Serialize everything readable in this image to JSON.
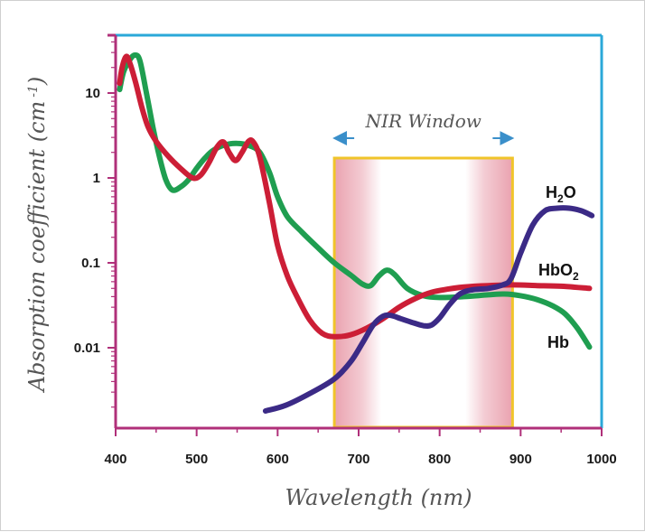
{
  "chart_data": {
    "type": "line",
    "xlabel": "Wavelength (nm)",
    "ylabel": "Absorption coefficient (cm⁻¹)",
    "ylabel_parts": {
      "main": "Absorption coefficient (cm",
      "sup": "-1",
      "close": ")"
    },
    "x_ticks": [
      400,
      500,
      600,
      700,
      800,
      900,
      1000
    ],
    "x_tick_labels": [
      "400",
      "500",
      "600",
      "700",
      "800",
      "900",
      "1000"
    ],
    "xlim": [
      400,
      1000
    ],
    "y_scale": "log",
    "y_ticks": [
      10,
      1,
      0.1,
      0.01
    ],
    "y_tick_labels": [
      "10",
      "1",
      "0.1",
      "0.01"
    ],
    "ylim": [
      0.0008,
      40
    ],
    "window": {
      "label": "NIR Window",
      "x_start": 670,
      "x_end": 890
    },
    "series": [
      {
        "name": "Hb",
        "color": "#1f9e50",
        "points": [
          [
            405,
            11
          ],
          [
            410,
            18
          ],
          [
            418,
            25
          ],
          [
            424,
            28
          ],
          [
            430,
            24
          ],
          [
            438,
            10
          ],
          [
            446,
            4
          ],
          [
            454,
            1.8
          ],
          [
            462,
            0.95
          ],
          [
            470,
            0.72
          ],
          [
            480,
            0.78
          ],
          [
            490,
            0.95
          ],
          [
            500,
            1.3
          ],
          [
            510,
            1.7
          ],
          [
            520,
            2.1
          ],
          [
            535,
            2.45
          ],
          [
            550,
            2.55
          ],
          [
            565,
            2.4
          ],
          [
            578,
            2.0
          ],
          [
            590,
            1.15
          ],
          [
            600,
            0.6
          ],
          [
            612,
            0.35
          ],
          [
            630,
            0.23
          ],
          [
            650,
            0.15
          ],
          [
            670,
            0.1
          ],
          [
            690,
            0.072
          ],
          [
            705,
            0.056
          ],
          [
            715,
            0.054
          ],
          [
            725,
            0.07
          ],
          [
            735,
            0.082
          ],
          [
            745,
            0.072
          ],
          [
            760,
            0.05
          ],
          [
            780,
            0.041
          ],
          [
            800,
            0.039
          ],
          [
            830,
            0.04
          ],
          [
            860,
            0.042
          ],
          [
            880,
            0.043
          ],
          [
            900,
            0.041
          ],
          [
            920,
            0.037
          ],
          [
            940,
            0.031
          ],
          [
            955,
            0.025
          ],
          [
            970,
            0.017
          ],
          [
            985,
            0.0102
          ]
        ]
      },
      {
        "name": "HbO2",
        "color": "#cc1e36",
        "points": [
          [
            405,
            13
          ],
          [
            408,
            20
          ],
          [
            413,
            27
          ],
          [
            418,
            22
          ],
          [
            425,
            13
          ],
          [
            432,
            7
          ],
          [
            440,
            4
          ],
          [
            450,
            2.7
          ],
          [
            465,
            1.8
          ],
          [
            480,
            1.3
          ],
          [
            495,
            1.0
          ],
          [
            505,
            1.08
          ],
          [
            515,
            1.5
          ],
          [
            525,
            2.3
          ],
          [
            533,
            2.65
          ],
          [
            540,
            2.0
          ],
          [
            548,
            1.6
          ],
          [
            556,
            2.0
          ],
          [
            564,
            2.7
          ],
          [
            570,
            2.65
          ],
          [
            578,
            1.75
          ],
          [
            590,
            0.5
          ],
          [
            600,
            0.16
          ],
          [
            612,
            0.07
          ],
          [
            625,
            0.038
          ],
          [
            640,
            0.021
          ],
          [
            655,
            0.0148
          ],
          [
            670,
            0.0135
          ],
          [
            690,
            0.0142
          ],
          [
            710,
            0.017
          ],
          [
            730,
            0.022
          ],
          [
            750,
            0.03
          ],
          [
            770,
            0.038
          ],
          [
            790,
            0.045
          ],
          [
            810,
            0.049
          ],
          [
            830,
            0.052
          ],
          [
            860,
            0.054
          ],
          [
            890,
            0.055
          ],
          [
            920,
            0.054
          ],
          [
            950,
            0.053
          ],
          [
            985,
            0.05
          ]
        ]
      },
      {
        "name": "H2O",
        "color": "#3b2a86",
        "points": [
          [
            585,
            0.0018
          ],
          [
            610,
            0.0021
          ],
          [
            640,
            0.0029
          ],
          [
            670,
            0.0043
          ],
          [
            690,
            0.0068
          ],
          [
            705,
            0.0115
          ],
          [
            718,
            0.0185
          ],
          [
            730,
            0.0235
          ],
          [
            740,
            0.024
          ],
          [
            752,
            0.022
          ],
          [
            765,
            0.02
          ],
          [
            780,
            0.0182
          ],
          [
            790,
            0.0185
          ],
          [
            800,
            0.0225
          ],
          [
            812,
            0.032
          ],
          [
            825,
            0.043
          ],
          [
            840,
            0.048
          ],
          [
            860,
            0.05
          ],
          [
            878,
            0.055
          ],
          [
            888,
            0.065
          ],
          [
            900,
            0.13
          ],
          [
            915,
            0.28
          ],
          [
            930,
            0.41
          ],
          [
            945,
            0.44
          ],
          [
            960,
            0.44
          ],
          [
            975,
            0.41
          ],
          [
            988,
            0.36
          ]
        ]
      }
    ],
    "series_labels": [
      {
        "main": "H",
        "sub": "2",
        "rest": "O"
      },
      {
        "main": "HbO",
        "sub": "2",
        "rest": ""
      },
      {
        "main": "Hb",
        "sub": "",
        "rest": ""
      }
    ],
    "colors": {
      "frame": "#2aa8d8",
      "y_axis": "#b0307a",
      "window": "#f0c42a",
      "band": "#d9566e",
      "arrow": "#3a8fca"
    }
  }
}
